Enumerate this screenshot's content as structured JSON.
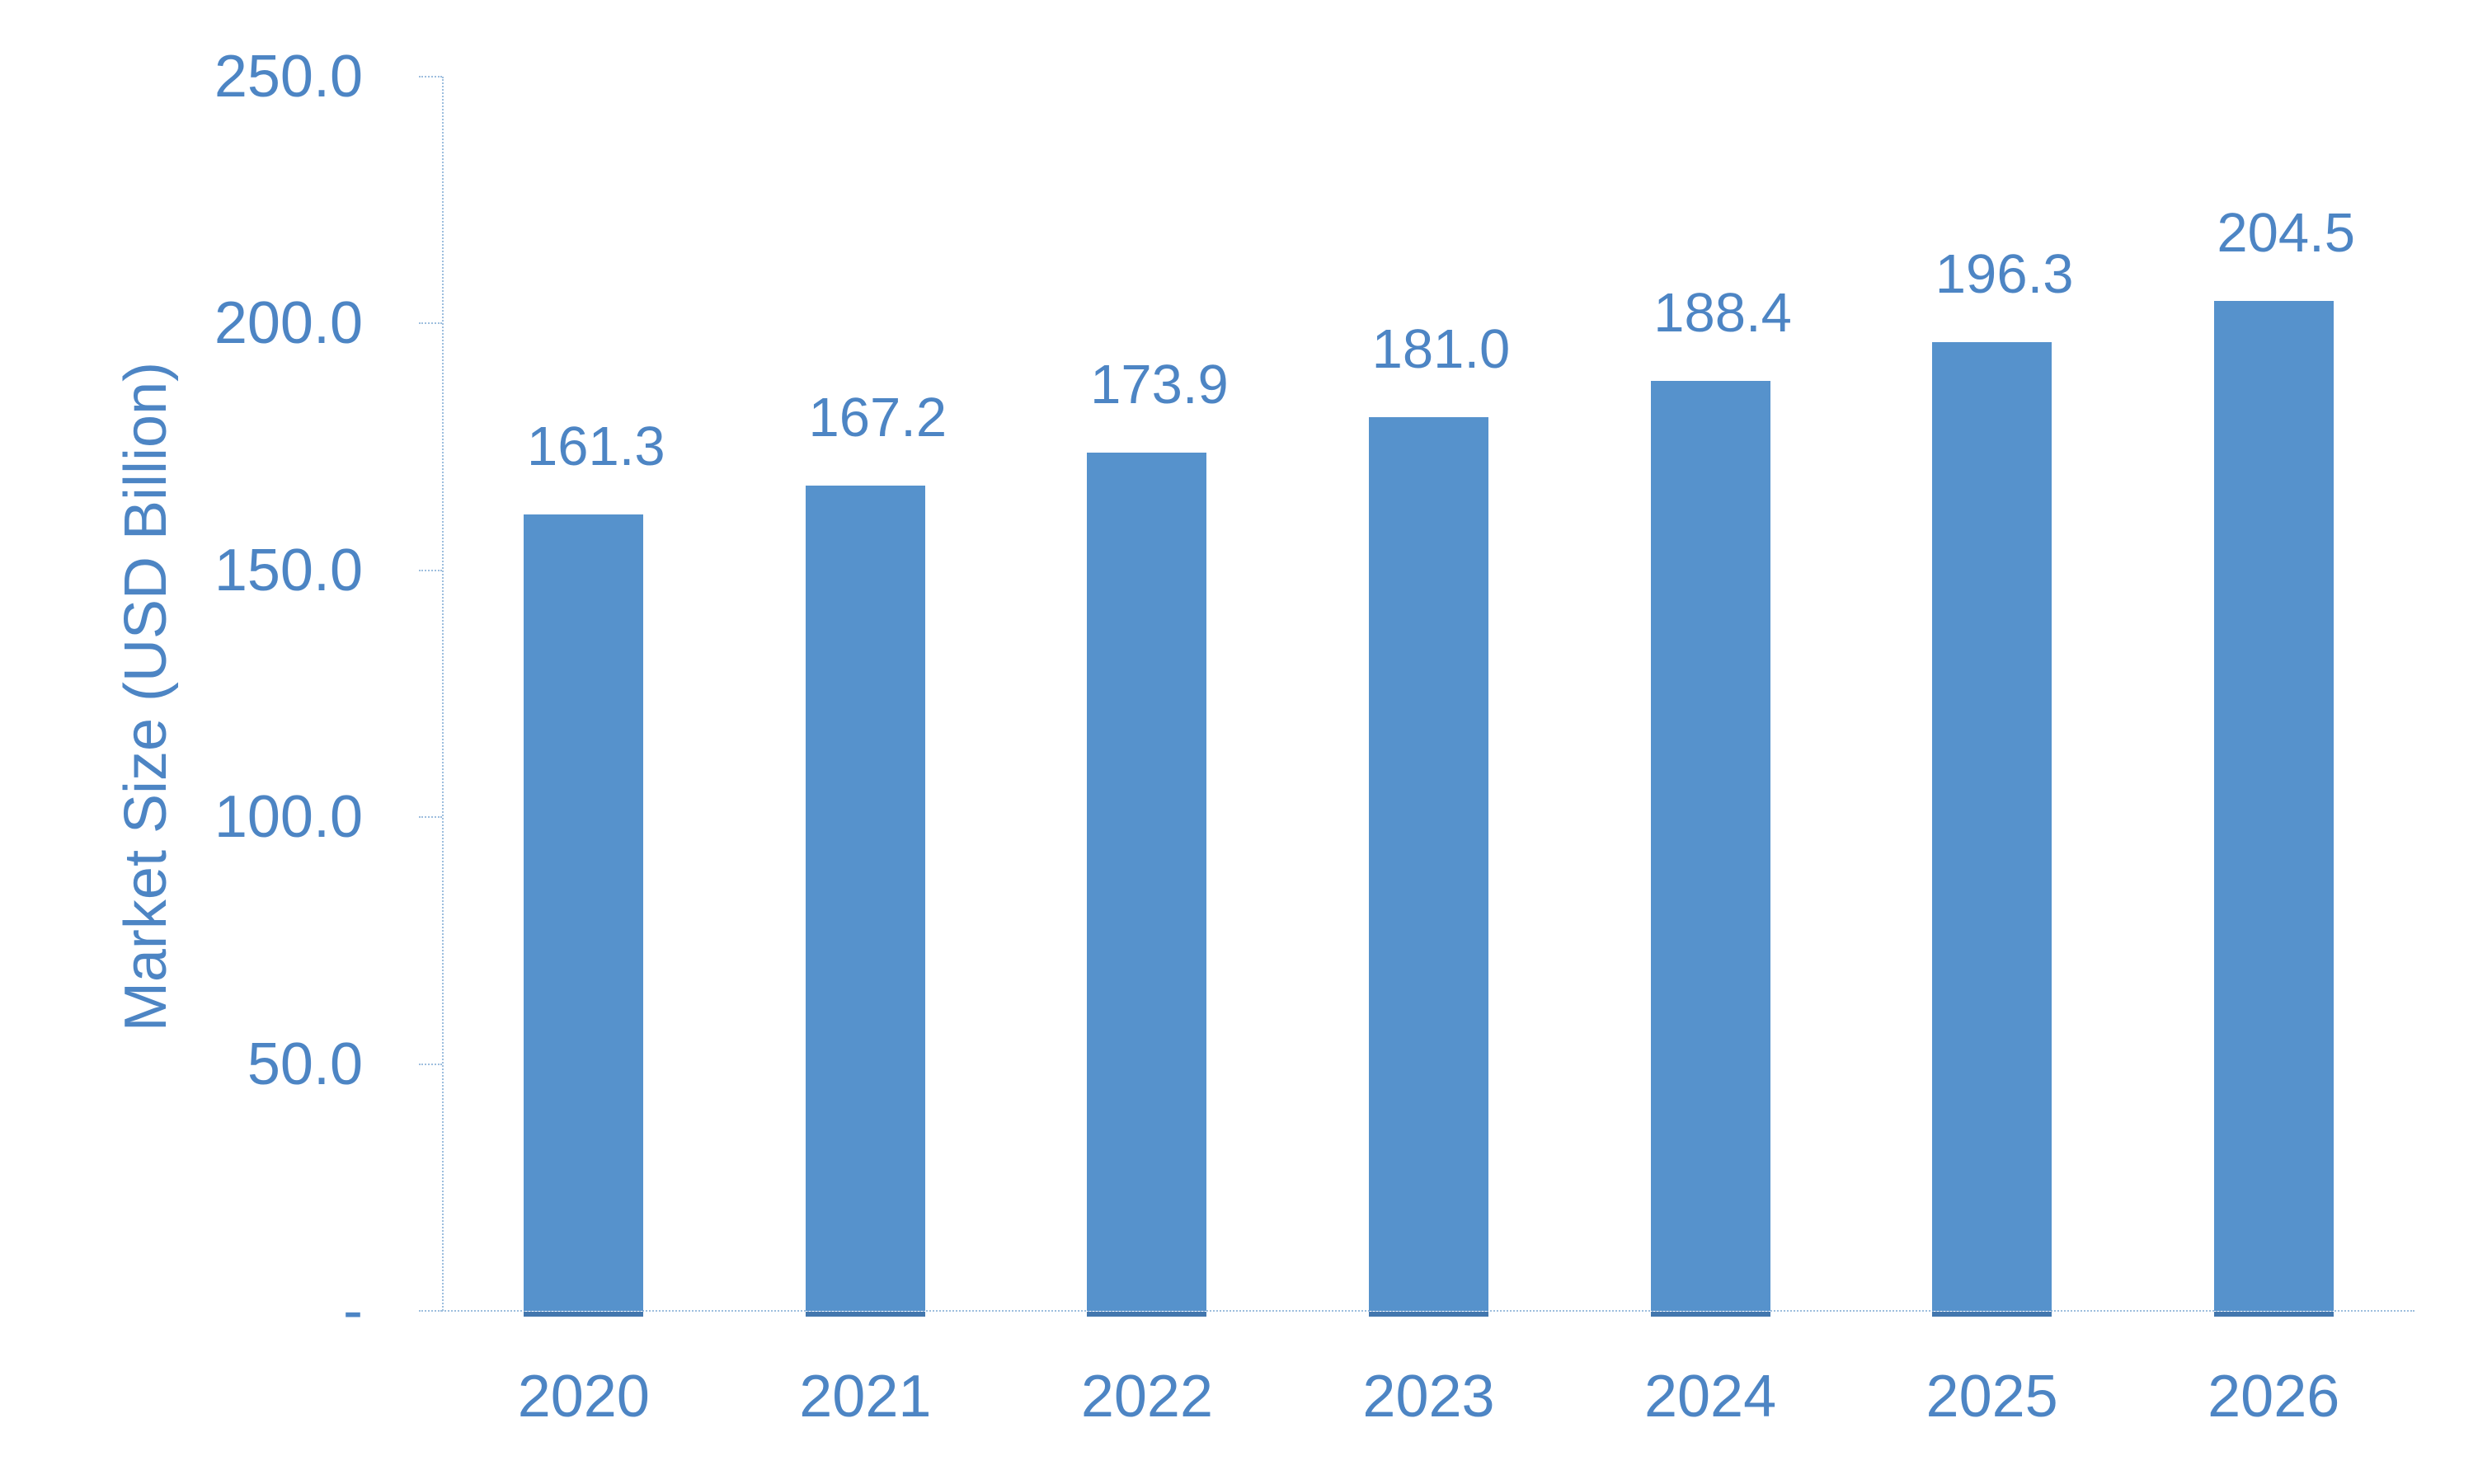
{
  "chart_data": {
    "type": "bar",
    "title": "",
    "xlabel": "",
    "ylabel": "Market Size (USD Billion)",
    "categories": [
      "2020",
      "2021",
      "2022",
      "2023",
      "2024",
      "2025",
      "2026"
    ],
    "values": [
      161.3,
      167.2,
      173.9,
      181.0,
      188.4,
      196.3,
      204.5
    ],
    "value_labels": [
      "161.3",
      "167.2",
      "173.9",
      "181.0",
      "188.4",
      "196.3",
      "204.5"
    ],
    "series_name": "Market Size",
    "ylim": [
      0,
      250
    ],
    "y_ticks": [
      {
        "value": 250,
        "label": "250.0"
      },
      {
        "value": 200,
        "label": "200.0"
      },
      {
        "value": 150,
        "label": "150.0"
      },
      {
        "value": 100,
        "label": "100.0"
      },
      {
        "value": 50,
        "label": "50.0"
      },
      {
        "value": 0,
        "label": "-"
      }
    ],
    "grid": "off",
    "legend": "none",
    "colors": {
      "bar_fill": "#5692CC",
      "bar_base_line": "#4377AE",
      "text": "#4D85C4",
      "axis_line": "#9DBEDE",
      "background": "#FFFFFF"
    }
  }
}
